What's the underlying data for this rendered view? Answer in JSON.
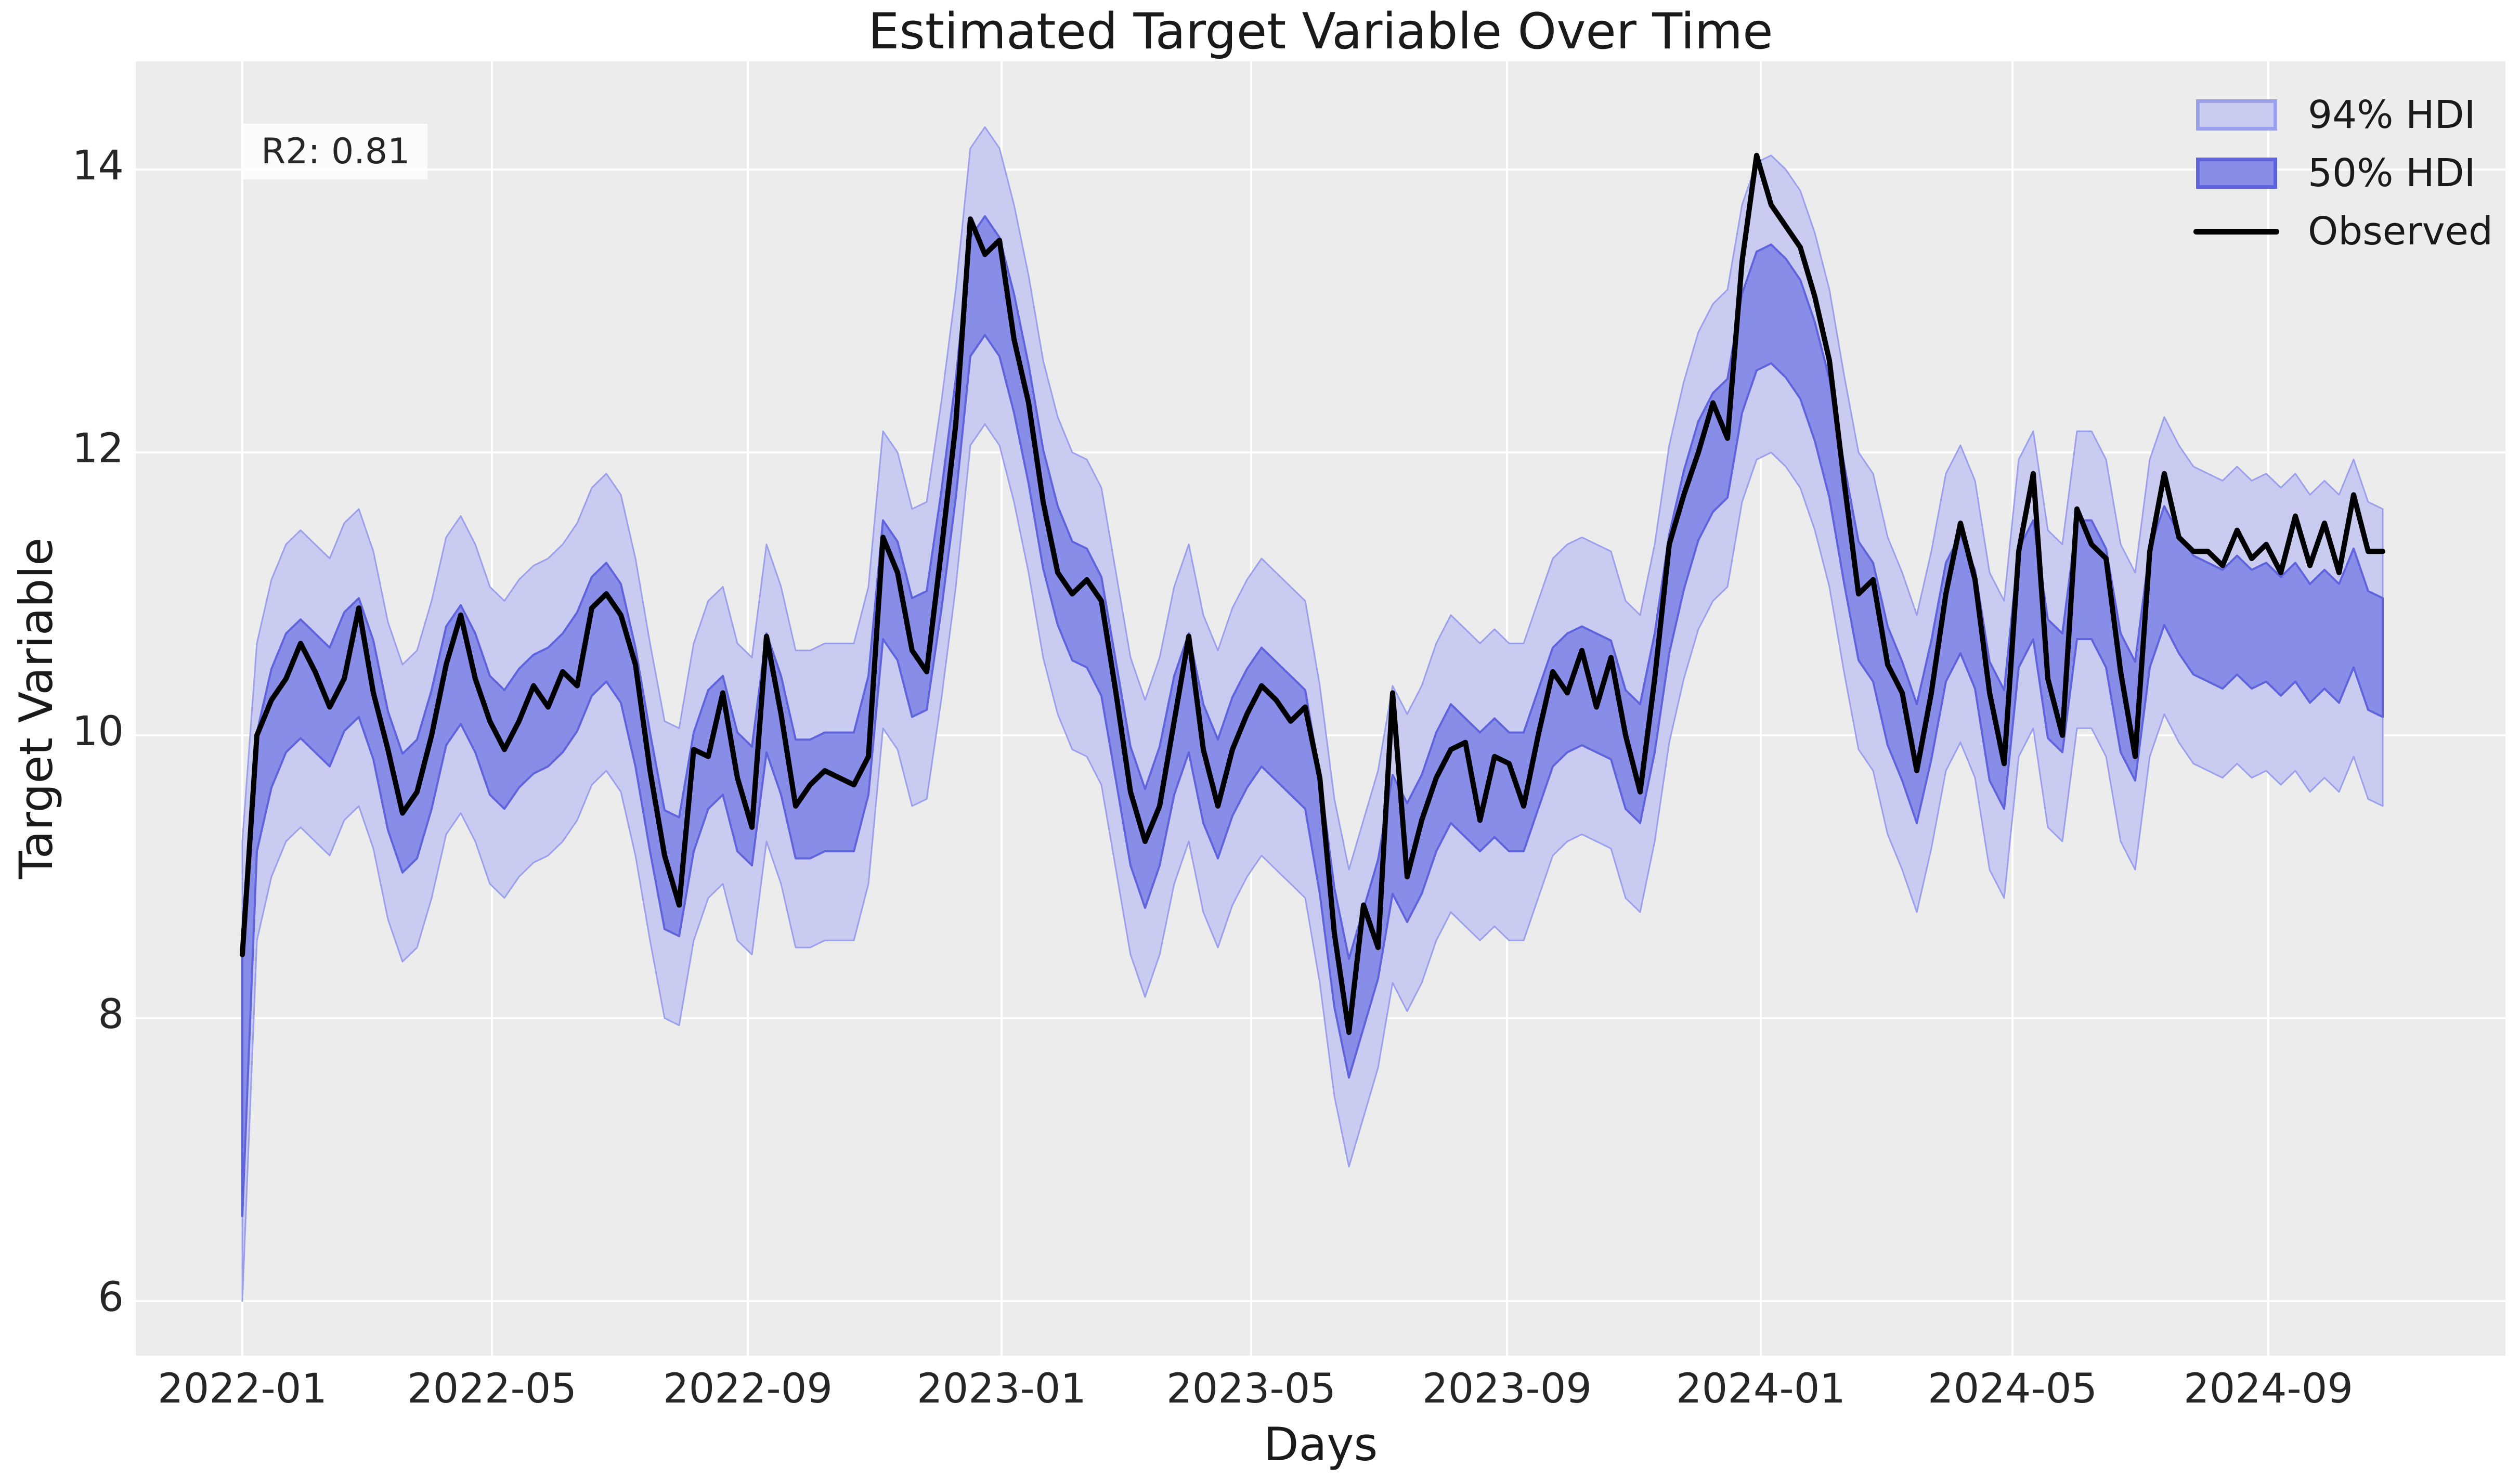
{
  "figure": {
    "title": "Estimated Target Variable Over Time",
    "xlabel": "Days",
    "ylabel": "Target Variable",
    "annotation": "R2: 0.81"
  },
  "legend": {
    "items": [
      {
        "label": "94% HDI",
        "type": "band",
        "fill": "#c9cbf1",
        "edge": "#9ba0ec"
      },
      {
        "label": "50% HDI",
        "type": "band",
        "fill": "#888de8",
        "edge": "#5f64dc"
      },
      {
        "label": "Observed",
        "type": "line",
        "color": "#000000"
      }
    ]
  },
  "axes": {
    "x_ticks": [
      {
        "label": "2022-01",
        "day": 0
      },
      {
        "label": "2022-05",
        "day": 120
      },
      {
        "label": "2022-09",
        "day": 243
      },
      {
        "label": "2023-01",
        "day": 365
      },
      {
        "label": "2023-05",
        "day": 485
      },
      {
        "label": "2023-09",
        "day": 608
      },
      {
        "label": "2024-01",
        "day": 730
      },
      {
        "label": "2024-05",
        "day": 851
      },
      {
        "label": "2024-09",
        "day": 974
      }
    ],
    "y_ticks": [
      "6",
      "8",
      "10",
      "12",
      "14"
    ],
    "y_tick_values": [
      6,
      8,
      10,
      12,
      14
    ]
  },
  "colors": {
    "plot_bg": "#ececec",
    "grid": "#ffffff",
    "hdi94_fill": "#c9cbf1",
    "hdi94_edge": "#9ba0ec",
    "hdi50_fill": "#888de8",
    "hdi50_edge": "#5f64dc",
    "observed": "#000000",
    "text": "#262626"
  },
  "chart_data": {
    "type": "line",
    "title": "Estimated Target Variable Over Time",
    "xlabel": "Days",
    "ylabel": "Target Variable",
    "r_squared": 0.81,
    "legend_position": "upper right",
    "grid": true,
    "x_start_date": "2022-01-01",
    "x_step_days": 7,
    "xlim_days": [
      -51,
      1088
    ],
    "ylim": [
      5.6,
      14.76
    ],
    "hdi50_halfwidth": 0.42,
    "hdi94_halfwidth": 1.05,
    "first_point_hdi94_lower": 6.0,
    "first_point_hdi50_lower": 6.6,
    "series": [
      {
        "name": "Observed",
        "values": [
          8.45,
          10.0,
          10.25,
          10.4,
          10.65,
          10.45,
          10.2,
          10.4,
          10.9,
          10.3,
          9.9,
          9.45,
          9.6,
          10.0,
          10.5,
          10.85,
          10.4,
          10.1,
          9.9,
          10.1,
          10.35,
          10.2,
          10.45,
          10.35,
          10.9,
          11.0,
          10.85,
          10.5,
          9.75,
          9.15,
          8.8,
          9.9,
          9.85,
          10.3,
          9.7,
          9.35,
          10.7,
          10.15,
          9.5,
          9.65,
          9.75,
          9.7,
          9.65,
          9.85,
          11.4,
          11.15,
          10.6,
          10.45,
          11.3,
          12.2,
          13.65,
          13.4,
          13.5,
          12.8,
          12.35,
          11.65,
          11.15,
          11.0,
          11.1,
          10.95,
          10.3,
          9.6,
          9.25,
          9.5,
          10.1,
          10.7,
          9.9,
          9.5,
          9.9,
          10.15,
          10.35,
          10.25,
          10.1,
          10.2,
          9.7,
          8.6,
          7.9,
          8.8,
          8.5,
          10.3,
          9.0,
          9.4,
          9.7,
          9.9,
          9.95,
          9.4,
          9.85,
          9.8,
          9.5,
          10.0,
          10.45,
          10.3,
          10.6,
          10.2,
          10.55,
          10.0,
          9.6,
          10.4,
          11.35,
          11.7,
          12.0,
          12.35,
          12.1,
          13.35,
          14.1,
          13.75,
          13.6,
          13.45,
          13.1,
          12.65,
          11.8,
          11.0,
          11.1,
          10.5,
          10.3,
          9.75,
          10.3,
          11.0,
          11.5,
          11.1,
          10.3,
          9.8,
          11.3,
          11.85,
          10.4,
          10.0,
          11.6,
          11.35,
          11.25,
          10.45,
          9.85,
          11.3,
          11.85,
          11.4,
          11.3,
          11.3,
          11.2,
          11.45,
          11.25,
          11.35,
          11.15,
          11.55,
          11.2,
          11.5,
          11.15,
          11.7,
          11.3,
          11.3
        ]
      },
      {
        "name": "HDI band center (posterior mean)",
        "values": [
          8.2,
          9.6,
          10.05,
          10.3,
          10.4,
          10.3,
          10.2,
          10.45,
          10.55,
          10.25,
          9.75,
          9.45,
          9.55,
          9.9,
          10.35,
          10.5,
          10.3,
          10.0,
          9.9,
          10.05,
          10.15,
          10.2,
          10.3,
          10.45,
          10.7,
          10.8,
          10.65,
          10.2,
          9.6,
          9.05,
          9.0,
          9.6,
          9.9,
          10.0,
          9.6,
          9.5,
          10.3,
          10.0,
          9.55,
          9.55,
          9.6,
          9.6,
          9.6,
          10.0,
          11.1,
          10.95,
          10.55,
          10.6,
          11.3,
          12.1,
          13.1,
          13.25,
          13.1,
          12.7,
          12.2,
          11.6,
          11.2,
          10.95,
          10.9,
          10.7,
          10.1,
          9.5,
          9.2,
          9.5,
          10.0,
          10.3,
          9.8,
          9.55,
          9.85,
          10.05,
          10.2,
          10.1,
          10.0,
          9.9,
          9.3,
          8.5,
          8.0,
          8.35,
          8.7,
          9.3,
          9.1,
          9.3,
          9.6,
          9.8,
          9.7,
          9.6,
          9.7,
          9.6,
          9.6,
          9.9,
          10.2,
          10.3,
          10.35,
          10.3,
          10.25,
          9.9,
          9.8,
          10.3,
          11.0,
          11.45,
          11.8,
          12.0,
          12.1,
          12.7,
          13.0,
          13.05,
          12.95,
          12.8,
          12.5,
          12.1,
          11.5,
          10.95,
          10.8,
          10.35,
          10.1,
          9.8,
          10.25,
          10.8,
          11.0,
          10.75,
          10.1,
          9.9,
          10.9,
          11.1,
          10.4,
          10.3,
          11.1,
          11.1,
          10.9,
          10.3,
          10.1,
          10.9,
          11.2,
          11.0,
          10.85,
          10.8,
          10.75,
          10.85,
          10.75,
          10.8,
          10.7,
          10.8,
          10.65,
          10.75,
          10.65,
          10.9,
          10.6,
          10.55
        ]
      }
    ]
  }
}
